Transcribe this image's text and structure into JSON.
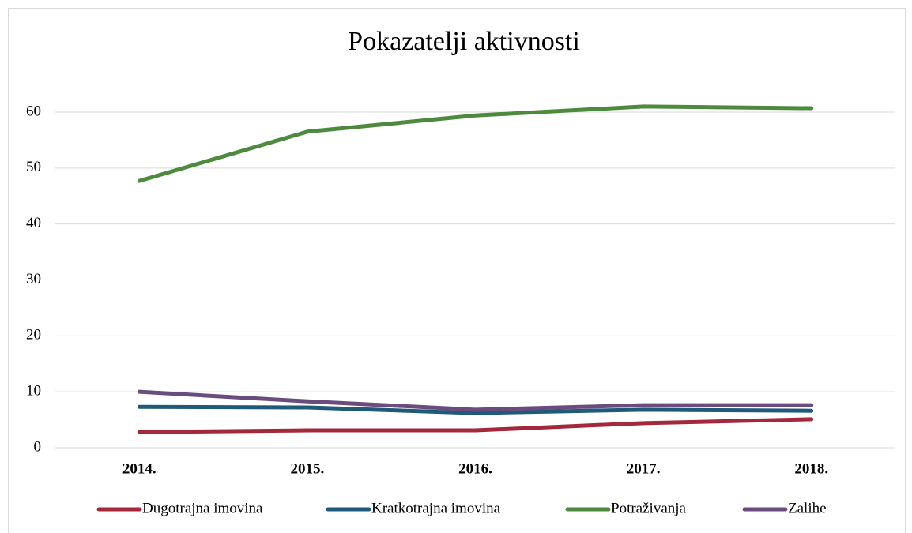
{
  "chart_data": {
    "type": "line",
    "title": "Pokazatelji aktivnosti",
    "categories": [
      "2014.",
      "2015.",
      "2016.",
      "2017.",
      "2018."
    ],
    "series": [
      {
        "name": "Dugotrajna imovina",
        "color": "#a3283a",
        "values": [
          2.8,
          3.1,
          3.1,
          4.4,
          5.1
        ]
      },
      {
        "name": "Kratkotrajna imovina",
        "color": "#1f5a7a",
        "values": [
          7.3,
          7.2,
          6.2,
          6.8,
          6.6
        ]
      },
      {
        "name": "Potraživanja",
        "color": "#4e8a3e",
        "values": [
          47.7,
          56.5,
          59.4,
          61.0,
          60.7
        ]
      },
      {
        "name": "Zalihe",
        "color": "#6b4c7e",
        "values": [
          10.0,
          8.3,
          6.8,
          7.6,
          7.6
        ]
      }
    ],
    "ylim": [
      0,
      60
    ],
    "yticks": [
      0,
      10,
      20,
      30,
      40,
      50,
      60
    ],
    "grid": true,
    "legend": "bottom"
  }
}
